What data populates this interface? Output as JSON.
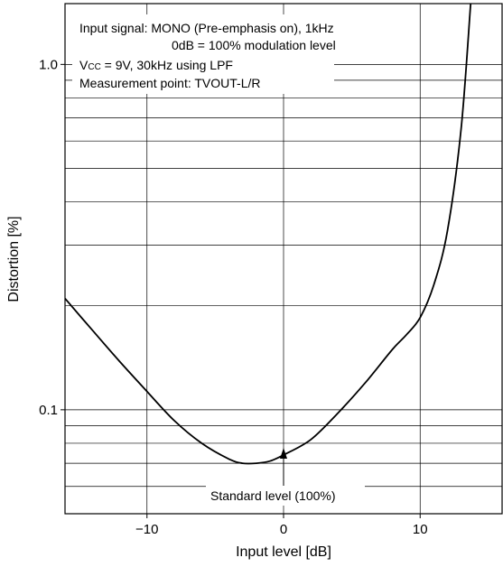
{
  "chart_data": {
    "type": "line",
    "xlabel": "Input level [dB]",
    "ylabel": "Distortion [%]",
    "xlim": [
      -16,
      16
    ],
    "ylim": [
      0.05,
      1.5
    ],
    "yscale": "log",
    "grid": true,
    "x_ticks": [
      -10,
      0,
      10
    ],
    "x_tick_labels": [
      "−10",
      "0",
      "10"
    ],
    "y_ticks": [
      0.1,
      1.0
    ],
    "y_tick_labels": [
      "0.1",
      "1.0"
    ],
    "annotation_lines": [
      {
        "text": "Input signal: MONO (Pre-emphasis on), 1kHz"
      },
      {
        "text": "0dB = 100% modulation level"
      },
      {
        "prefix": "V",
        "sub": "CC",
        "rest": " = 9V, 30kHz using LPF"
      },
      {
        "text": "Measurement point: TVOUT-L/R"
      }
    ],
    "arrow_label": {
      "text": "Standard level (100%)",
      "x": 0
    },
    "series": [
      {
        "x": [
          -16,
          -14,
          -12,
          -10,
          -8,
          -6,
          -4,
          -3,
          -2,
          -1,
          0,
          2,
          4,
          6,
          8,
          9,
          10,
          11,
          12,
          13,
          13.7
        ],
        "y": [
          0.21,
          0.17,
          0.138,
          0.113,
          0.093,
          0.08,
          0.072,
          0.07,
          0.07,
          0.071,
          0.074,
          0.082,
          0.098,
          0.12,
          0.15,
          0.165,
          0.185,
          0.23,
          0.33,
          0.65,
          1.5
        ]
      }
    ]
  }
}
